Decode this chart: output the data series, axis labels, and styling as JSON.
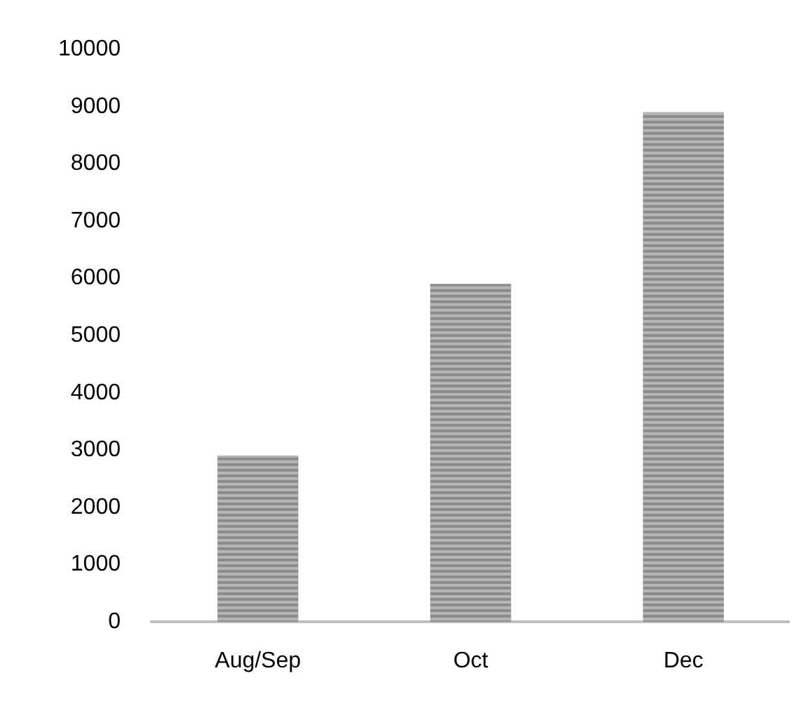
{
  "chart_data": {
    "type": "bar",
    "categories": [
      "Aug/Sep",
      "Oct",
      "Dec"
    ],
    "values": [
      2900,
      5900,
      8900
    ],
    "color": "#8c8c8c",
    "ylim": [
      0,
      10000
    ],
    "yticks": [
      0,
      1000,
      2000,
      3000,
      4000,
      5000,
      6000,
      7000,
      8000,
      9000,
      10000
    ],
    "grid": false
  }
}
